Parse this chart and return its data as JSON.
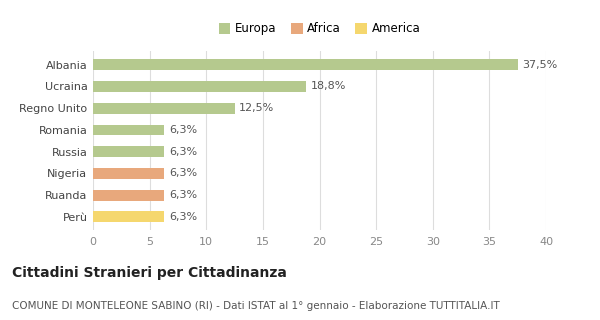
{
  "categories": [
    "Perù",
    "Ruanda",
    "Nigeria",
    "Russia",
    "Romania",
    "Regno Unito",
    "Ucraina",
    "Albania"
  ],
  "values": [
    6.3,
    6.3,
    6.3,
    6.3,
    6.3,
    12.5,
    18.8,
    37.5
  ],
  "colors": [
    "#f5d76e",
    "#e8a87c",
    "#e8a87c",
    "#b5c98e",
    "#b5c98e",
    "#b5c98e",
    "#b5c98e",
    "#b5c98e"
  ],
  "labels": [
    "6,3%",
    "6,3%",
    "6,3%",
    "6,3%",
    "6,3%",
    "12,5%",
    "18,8%",
    "37,5%"
  ],
  "xlim": [
    0,
    40
  ],
  "xticks": [
    0,
    5,
    10,
    15,
    20,
    25,
    30,
    35,
    40
  ],
  "legend_items": [
    {
      "label": "Europa",
      "color": "#b5c98e"
    },
    {
      "label": "Africa",
      "color": "#e8a87c"
    },
    {
      "label": "America",
      "color": "#f5d76e"
    }
  ],
  "title": "Cittadini Stranieri per Cittadinanza",
  "subtitle": "COMUNE DI MONTELEONE SABINO (RI) - Dati ISTAT al 1° gennaio - Elaborazione TUTTITALIA.IT",
  "background_color": "#ffffff",
  "grid_color": "#dddddd",
  "bar_height": 0.5,
  "label_fontsize": 8,
  "title_fontsize": 10,
  "subtitle_fontsize": 7.5,
  "tick_fontsize": 8
}
